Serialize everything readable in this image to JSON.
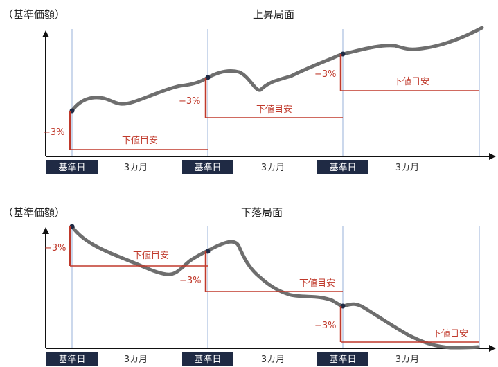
{
  "colors": {
    "curve": "#6e6e6e",
    "guide": "#c0392b",
    "vline": "#a9bfe0",
    "axis": "#111111",
    "base_box": "#1f2a44",
    "point": "#1f2a44"
  },
  "icons": [
    "arrow-up-icon",
    "arrow-right-icon"
  ],
  "panels": [
    {
      "y_label": "（基準価額）",
      "title": "上昇局面",
      "base_label": "基準日",
      "period_label": "3カ月",
      "drop_label": "−3%",
      "floor_label": "下値目安"
    },
    {
      "y_label": "（基準価額）",
      "title": "下落局面",
      "base_label": "基準日",
      "period_label": "3カ月",
      "drop_label": "−3%",
      "floor_label": "下値目安"
    }
  ]
}
